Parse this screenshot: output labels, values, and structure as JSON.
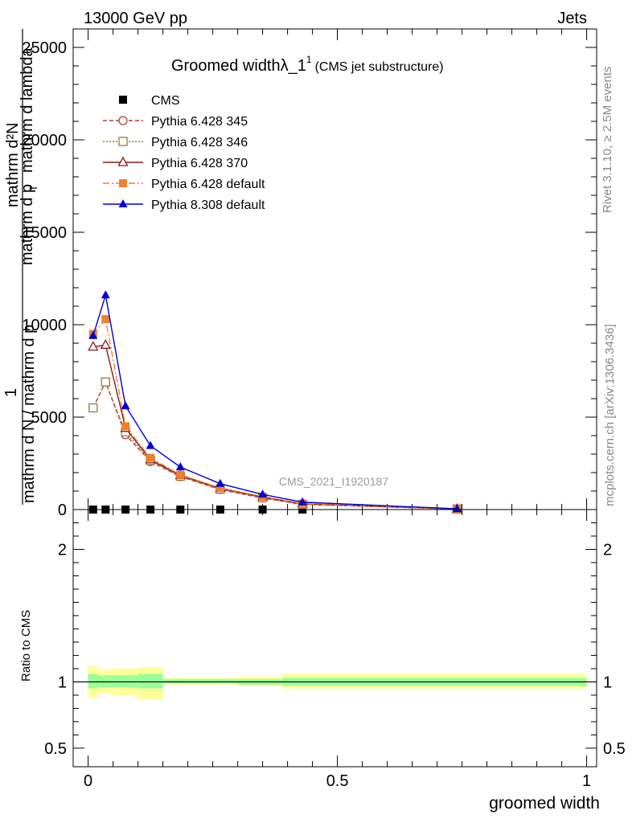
{
  "header": {
    "left": "13000 GeV pp",
    "right": "Jets"
  },
  "side_labels": {
    "rivet": "Rivet 3.1.10, ≥ 2.5M events",
    "mcplots": "mcplots.cern.ch [arXiv:1306.3436]"
  },
  "chart_data": [
    {
      "type": "line",
      "title": "Groomed widthλ_1",
      "title_superscript": "1",
      "subtitle": "(CMS jet substructure)",
      "watermark": "CMS_2021_I1920187",
      "ylabel_top": "mathrm d²N",
      "ylabel_numerator": "1",
      "ylabel_denominator": "mathrm d N / mathrm d p",
      "ylabel_bottom": "mathrm d p",
      "ylabel_sub": "T",
      "ylabel_tail": "mathrm d lambda",
      "xlim": [
        -0.03,
        1.02
      ],
      "ylim": [
        0,
        26000
      ],
      "yticks": [
        0,
        5000,
        10000,
        15000,
        20000,
        25000
      ],
      "ytick_labels": [
        "0",
        "5000",
        "10000",
        "15000",
        "20000",
        "25000"
      ],
      "legend_position": "top-left",
      "series": [
        {
          "name": "CMS",
          "color": "#000000",
          "marker": "square-filled",
          "line": "none",
          "x": [
            0.01,
            0.035,
            0.075,
            0.125,
            0.185,
            0.265,
            0.35,
            0.43,
            0.74
          ],
          "y": [
            0,
            0,
            0,
            0,
            0,
            0,
            0,
            0,
            0
          ]
        },
        {
          "name": "Pythia 6.428 345",
          "color": "#b03a3a",
          "marker": "circle-open",
          "line": "dashed",
          "x": [
            0.01,
            0.035,
            0.075,
            0.125,
            0.185,
            0.265,
            0.35,
            0.43,
            0.74
          ],
          "y": [
            5500,
            6900,
            4050,
            2600,
            1780,
            1080,
            620,
            280,
            30
          ]
        },
        {
          "name": "Pythia 6.428 346",
          "color": "#9a7a3a",
          "marker": "square-open",
          "line": "dotted",
          "x": [
            0.01,
            0.035,
            0.075,
            0.125,
            0.185,
            0.265,
            0.35,
            0.43,
            0.74
          ],
          "y": [
            5500,
            6900,
            4200,
            2650,
            1800,
            1100,
            640,
            290,
            30
          ]
        },
        {
          "name": "Pythia 6.428 370",
          "color": "#8b1a1a",
          "marker": "triangle-open",
          "line": "solid",
          "x": [
            0.01,
            0.035,
            0.075,
            0.125,
            0.185,
            0.265,
            0.35,
            0.43,
            0.74
          ],
          "y": [
            8800,
            8900,
            4400,
            2700,
            1850,
            1150,
            680,
            310,
            35
          ]
        },
        {
          "name": "Pythia 6.428 default",
          "color": "#f07f2f",
          "marker": "square-filled",
          "line": "dashdot",
          "x": [
            0.01,
            0.035,
            0.075,
            0.125,
            0.185,
            0.265,
            0.35,
            0.43,
            0.74
          ],
          "y": [
            9500,
            10300,
            4500,
            2800,
            1880,
            1170,
            700,
            320,
            35
          ]
        },
        {
          "name": "Pythia 8.308 default",
          "color": "#0000d0",
          "marker": "triangle-filled",
          "line": "solid",
          "x": [
            0.01,
            0.035,
            0.075,
            0.125,
            0.185,
            0.265,
            0.35,
            0.43,
            0.74
          ],
          "y": [
            9400,
            11600,
            5600,
            3450,
            2300,
            1400,
            820,
            400,
            40
          ]
        }
      ]
    },
    {
      "type": "area",
      "ylabel": "Ratio to CMS",
      "xlabel": "groomed width",
      "xlim": [
        -0.03,
        1.02
      ],
      "ylim": [
        0.36,
        2.3
      ],
      "yticks": [
        0.5,
        1,
        2
      ],
      "ytick_labels": [
        "0.5",
        "1",
        "2"
      ],
      "xticks": [
        0,
        0.5,
        1
      ],
      "xtick_labels": [
        "0",
        "0.5",
        "1"
      ],
      "reference_line": 1,
      "bins": [
        {
          "x0": 0.0,
          "x1": 0.02,
          "stat_lo": 0.95,
          "stat_hi": 1.06,
          "tot_lo": 0.88,
          "tot_hi": 1.12
        },
        {
          "x0": 0.02,
          "x1": 0.05,
          "stat_lo": 0.96,
          "stat_hi": 1.05,
          "tot_lo": 0.91,
          "tot_hi": 1.09
        },
        {
          "x0": 0.05,
          "x1": 0.1,
          "stat_lo": 0.96,
          "stat_hi": 1.05,
          "tot_lo": 0.9,
          "tot_hi": 1.1
        },
        {
          "x0": 0.1,
          "x1": 0.15,
          "stat_lo": 0.95,
          "stat_hi": 1.06,
          "tot_lo": 0.87,
          "tot_hi": 1.11
        },
        {
          "x0": 0.15,
          "x1": 0.3,
          "stat_lo": 0.99,
          "stat_hi": 1.02,
          "tot_lo": 0.98,
          "tot_hi": 1.03
        },
        {
          "x0": 0.3,
          "x1": 0.39,
          "stat_lo": 0.98,
          "stat_hi": 1.02,
          "tot_lo": 0.97,
          "tot_hi": 1.04
        },
        {
          "x0": 0.39,
          "x1": 0.47,
          "stat_lo": 0.97,
          "stat_hi": 1.03,
          "tot_lo": 0.95,
          "tot_hi": 1.06
        },
        {
          "x0": 0.47,
          "x1": 1.0,
          "stat_lo": 0.97,
          "stat_hi": 1.03,
          "tot_lo": 0.95,
          "tot_hi": 1.06
        }
      ],
      "colors": {
        "stat": "#99ff99",
        "total": "#ffff99"
      }
    }
  ]
}
